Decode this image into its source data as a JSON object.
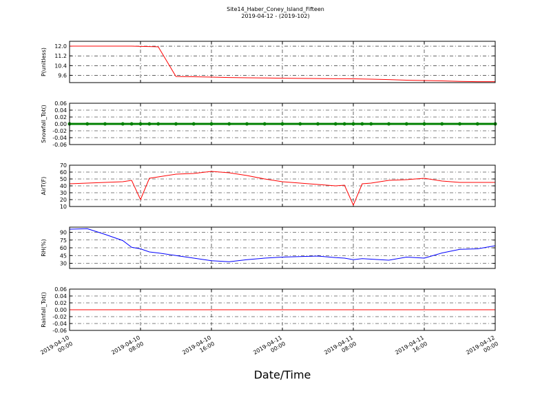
{
  "chart_data": [
    {
      "type": "line",
      "ylabel": "P(unitless)",
      "ylim": [
        9.0,
        12.4
      ],
      "yticks": [
        9.6,
        10.4,
        11.2,
        {
          "value": 12,
          "label": "12.0"
        }
      ],
      "grid": true,
      "x": [
        "2019-04-10 00:00",
        "2019-04-10 02:00",
        "2019-04-10 04:00",
        "2019-04-10 06:00",
        "2019-04-10 07:00",
        "2019-04-10 08:00",
        "2019-04-10 09:00",
        "2019-04-10 10:00",
        "2019-04-10 12:00",
        "2019-04-10 14:00",
        "2019-04-10 16:00",
        "2019-04-10 18:00",
        "2019-04-10 20:00",
        "2019-04-10 22:00",
        "2019-04-11 00:00",
        "2019-04-11 02:00",
        "2019-04-11 04:00",
        "2019-04-11 06:00",
        "2019-04-11 07:00",
        "2019-04-11 08:00",
        "2019-04-11 09:00",
        "2019-04-11 10:00",
        "2019-04-11 12:00",
        "2019-04-11 14:00",
        "2019-04-11 16:00",
        "2019-04-11 18:00",
        "2019-04-11 20:00",
        "2019-04-11 22:00",
        "2019-04-12 00:00"
      ],
      "series": [
        {
          "color": "#ff0000",
          "values": [
            12.0,
            12.0,
            12.0,
            12.0,
            12.0,
            11.98,
            11.97,
            11.95,
            9.5,
            9.48,
            9.45,
            9.42,
            9.4,
            9.38,
            9.36,
            9.35,
            9.33,
            9.32,
            9.32,
            9.31,
            9.3,
            9.28,
            9.25,
            9.2,
            9.17,
            9.14,
            9.1,
            9.08,
            9.08
          ]
        }
      ]
    },
    {
      "type": "line",
      "ylabel": "Snowfall_Tot()",
      "ylim": [
        -0.06,
        0.06
      ],
      "yticks": [
        -0.06,
        -0.04,
        -0.02,
        {
          "value": 0,
          "label": "0.00"
        },
        0.02,
        0.04,
        0.06
      ],
      "grid": true,
      "markers": true,
      "x": [
        "2019-04-10 00:00",
        "2019-04-10 02:00",
        "2019-04-10 04:00",
        "2019-04-10 06:00",
        "2019-04-10 07:00",
        "2019-04-10 08:00",
        "2019-04-10 09:00",
        "2019-04-10 10:00",
        "2019-04-10 12:00",
        "2019-04-10 14:00",
        "2019-04-10 16:00",
        "2019-04-10 18:00",
        "2019-04-10 20:00",
        "2019-04-10 22:00",
        "2019-04-11 00:00",
        "2019-04-11 02:00",
        "2019-04-11 04:00",
        "2019-04-11 06:00",
        "2019-04-11 07:00",
        "2019-04-11 08:00",
        "2019-04-11 09:00",
        "2019-04-11 10:00",
        "2019-04-11 12:00",
        "2019-04-11 14:00",
        "2019-04-11 16:00",
        "2019-04-11 18:00",
        "2019-04-11 20:00",
        "2019-04-11 22:00",
        "2019-04-12 00:00"
      ],
      "series": [
        {
          "color": "#008000",
          "values": [
            0,
            0,
            0,
            0,
            0,
            0,
            0,
            0,
            0,
            0,
            0,
            0,
            0,
            0,
            0,
            0,
            0,
            0,
            0,
            0,
            0,
            0,
            0,
            0,
            0,
            0,
            0,
            0,
            0
          ]
        }
      ]
    },
    {
      "type": "line",
      "ylabel": "AirT(F)",
      "ylim": [
        10,
        70
      ],
      "yticks": [
        10,
        20,
        30,
        40,
        50,
        60,
        70
      ],
      "grid": true,
      "x": [
        "2019-04-10 00:00",
        "2019-04-10 02:00",
        "2019-04-10 04:00",
        "2019-04-10 06:00",
        "2019-04-10 07:00",
        "2019-04-10 08:00",
        "2019-04-10 09:00",
        "2019-04-10 10:00",
        "2019-04-10 12:00",
        "2019-04-10 14:00",
        "2019-04-10 16:00",
        "2019-04-10 18:00",
        "2019-04-10 20:00",
        "2019-04-10 22:00",
        "2019-04-11 00:00",
        "2019-04-11 02:00",
        "2019-04-11 04:00",
        "2019-04-11 06:00",
        "2019-04-11 07:00",
        "2019-04-11 08:00",
        "2019-04-11 09:00",
        "2019-04-11 10:00",
        "2019-04-11 12:00",
        "2019-04-11 14:00",
        "2019-04-11 16:00",
        "2019-04-11 18:00",
        "2019-04-11 20:00",
        "2019-04-11 22:00",
        "2019-04-12 00:00"
      ],
      "series": [
        {
          "color": "#ff0000",
          "values": [
            43,
            44,
            45,
            46,
            48,
            20,
            51,
            53,
            57,
            58,
            61,
            59,
            55,
            50,
            46,
            44,
            42,
            40,
            41,
            12,
            43,
            44,
            48,
            49,
            51,
            47,
            45,
            45,
            45
          ]
        }
      ]
    },
    {
      "type": "line",
      "ylabel": "RH(%)",
      "ylim": [
        20,
        100
      ],
      "yticks": [
        30,
        45,
        60,
        75,
        90
      ],
      "grid": true,
      "x": [
        "2019-04-10 00:00",
        "2019-04-10 02:00",
        "2019-04-10 04:00",
        "2019-04-10 06:00",
        "2019-04-10 07:00",
        "2019-04-10 08:00",
        "2019-04-10 09:00",
        "2019-04-10 10:00",
        "2019-04-10 12:00",
        "2019-04-10 14:00",
        "2019-04-10 16:00",
        "2019-04-10 18:00",
        "2019-04-10 20:00",
        "2019-04-10 22:00",
        "2019-04-11 00:00",
        "2019-04-11 02:00",
        "2019-04-11 04:00",
        "2019-04-11 06:00",
        "2019-04-11 07:00",
        "2019-04-11 08:00",
        "2019-04-11 09:00",
        "2019-04-11 10:00",
        "2019-04-11 12:00",
        "2019-04-11 14:00",
        "2019-04-11 16:00",
        "2019-04-11 18:00",
        "2019-04-11 20:00",
        "2019-04-11 22:00",
        "2019-04-12 00:00"
      ],
      "series": [
        {
          "color": "#0000ff",
          "values": [
            96,
            97,
            86,
            74,
            61,
            58,
            52,
            50,
            45,
            40,
            35,
            33,
            37,
            40,
            42,
            43,
            44,
            41,
            40,
            37,
            39,
            38,
            36,
            42,
            40,
            50,
            57,
            58,
            64
          ]
        }
      ]
    },
    {
      "type": "line",
      "ylabel": "Rainfall_Tot()",
      "xlabel": "Date/Time",
      "ylim": [
        -0.06,
        0.06
      ],
      "yticks": [
        -0.06,
        -0.04,
        -0.02,
        {
          "value": 0,
          "label": "0.00"
        },
        0.02,
        0.04,
        0.06
      ],
      "grid": true,
      "xlim": [
        "2019-04-10 00:00",
        "2019-04-12 00:00"
      ],
      "xticks": [
        "2019-04-10 00:00",
        "2019-04-10 08:00",
        "2019-04-10 16:00",
        "2019-04-11 00:00",
        "2019-04-11 08:00",
        "2019-04-11 16:00",
        "2019-04-12 00:00"
      ],
      "x": [
        "2019-04-10 00:00",
        "2019-04-10 02:00",
        "2019-04-10 04:00",
        "2019-04-10 06:00",
        "2019-04-10 07:00",
        "2019-04-10 08:00",
        "2019-04-10 09:00",
        "2019-04-10 10:00",
        "2019-04-10 12:00",
        "2019-04-10 14:00",
        "2019-04-10 16:00",
        "2019-04-10 18:00",
        "2019-04-10 20:00",
        "2019-04-10 22:00",
        "2019-04-11 00:00",
        "2019-04-11 02:00",
        "2019-04-11 04:00",
        "2019-04-11 06:00",
        "2019-04-11 07:00",
        "2019-04-11 08:00",
        "2019-04-11 09:00",
        "2019-04-11 10:00",
        "2019-04-11 12:00",
        "2019-04-11 14:00",
        "2019-04-11 16:00",
        "2019-04-11 18:00",
        "2019-04-11 20:00",
        "2019-04-11 22:00",
        "2019-04-12 00:00"
      ],
      "series": [
        {
          "color": "#ff0000",
          "values": [
            0,
            0,
            0,
            0,
            0,
            0,
            0,
            0,
            0,
            0,
            0,
            0,
            0,
            0,
            0,
            0,
            0,
            0,
            0,
            0,
            0,
            0,
            0,
            0,
            0,
            0,
            0,
            0,
            0
          ]
        }
      ]
    }
  ],
  "title": "Site14_Haber_Coney_Island_Fifteen",
  "subtitle": "2019-04-12 - (2019-102)"
}
